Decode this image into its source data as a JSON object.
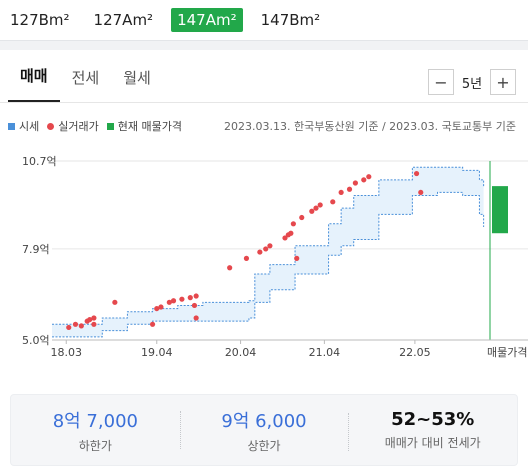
{
  "area_tabs": [
    {
      "label": "127Bm²",
      "active": false
    },
    {
      "label": "127Am²",
      "active": false
    },
    {
      "label": "147Am²",
      "active": true
    },
    {
      "label": "147Bm²",
      "active": false
    }
  ],
  "trade_tabs": [
    {
      "label": "매매",
      "active": true
    },
    {
      "label": "전세",
      "active": false
    },
    {
      "label": "월세",
      "active": false
    }
  ],
  "period": {
    "minus": "−",
    "value": "5년",
    "plus": "+"
  },
  "legend": {
    "items": [
      {
        "label": "시세",
        "color": "#4a90d9"
      },
      {
        "label": "실거래가",
        "color": "#e5484d"
      },
      {
        "label": "현재 매물가격",
        "color": "#22a84a"
      }
    ],
    "source": "2023.03.13. 한국부동산원 기준 / 2023.03. 국토교통부 기준"
  },
  "chart_data": {
    "type": "line",
    "y_ticks": [
      "10.7억",
      "7.9억",
      "5.0억"
    ],
    "y_tick_values": [
      10.7,
      7.9,
      5.0
    ],
    "ylim": [
      5.0,
      10.7
    ],
    "x_ticks": [
      "18.03",
      "19.04",
      "20.04",
      "21.04",
      "22.05"
    ],
    "x_tick_values": [
      2018.17,
      2019.25,
      2020.25,
      2021.25,
      2022.33
    ],
    "xlim": [
      2018.0,
      2023.25
    ],
    "current_listing_label": "매물가격",
    "series": [
      {
        "name": "시세",
        "x": [
          2018.0,
          2018.4,
          2018.6,
          2018.9,
          2019.2,
          2019.5,
          2019.8,
          2020.2,
          2020.35,
          2020.42,
          2020.6,
          2020.9,
          2021.3,
          2021.45,
          2021.6,
          2021.9,
          2022.3,
          2022.6,
          2022.9,
          2023.1,
          2023.15
        ],
        "upper": [
          5.5,
          5.5,
          5.7,
          5.9,
          6.0,
          6.1,
          6.2,
          6.2,
          6.25,
          7.1,
          7.4,
          8.0,
          8.7,
          9.2,
          9.6,
          10.1,
          10.5,
          10.5,
          10.4,
          10.1,
          9.9
        ],
        "lower": [
          5.1,
          5.1,
          5.3,
          5.5,
          5.6,
          5.6,
          5.6,
          5.6,
          5.7,
          6.2,
          6.6,
          7.1,
          7.7,
          8.0,
          8.2,
          9.0,
          9.6,
          9.7,
          9.6,
          9.0,
          8.6
        ]
      }
    ],
    "transactions": {
      "name": "실거래가",
      "points": [
        [
          2018.2,
          5.4
        ],
        [
          2018.28,
          5.5
        ],
        [
          2018.35,
          5.45
        ],
        [
          2018.42,
          5.6
        ],
        [
          2018.45,
          5.65
        ],
        [
          2018.5,
          5.7
        ],
        [
          2018.5,
          5.5
        ],
        [
          2018.75,
          6.2
        ],
        [
          2019.2,
          5.5
        ],
        [
          2019.25,
          6.0
        ],
        [
          2019.3,
          6.05
        ],
        [
          2019.4,
          6.2
        ],
        [
          2019.45,
          6.25
        ],
        [
          2019.55,
          6.3
        ],
        [
          2019.65,
          6.35
        ],
        [
          2019.72,
          6.4
        ],
        [
          2019.7,
          6.1
        ],
        [
          2019.72,
          5.7
        ],
        [
          2020.12,
          7.3
        ],
        [
          2020.32,
          7.6
        ],
        [
          2020.48,
          7.8
        ],
        [
          2020.55,
          7.9
        ],
        [
          2020.6,
          8.0
        ],
        [
          2020.78,
          8.25
        ],
        [
          2020.82,
          8.35
        ],
        [
          2020.85,
          8.4
        ],
        [
          2020.88,
          8.7
        ],
        [
          2020.92,
          7.6
        ],
        [
          2020.98,
          8.9
        ],
        [
          2021.1,
          9.1
        ],
        [
          2021.15,
          9.2
        ],
        [
          2021.2,
          9.3
        ],
        [
          2021.35,
          9.4
        ],
        [
          2021.45,
          9.7
        ],
        [
          2021.55,
          9.8
        ],
        [
          2021.62,
          10.0
        ],
        [
          2021.72,
          10.1
        ],
        [
          2021.78,
          10.2
        ],
        [
          2022.35,
          10.3
        ],
        [
          2022.4,
          9.7
        ]
      ]
    },
    "current_listing": {
      "name": "현재 매물가격",
      "min": 8.7,
      "max": 9.6,
      "x": 2023.25
    }
  },
  "summary": {
    "low_value": "8억 7,000",
    "low_label": "하한가",
    "high_value": "9억 6,000",
    "high_label": "상한가",
    "ratio_value": "52~53%",
    "ratio_label": "매매가 대비 전세가"
  }
}
